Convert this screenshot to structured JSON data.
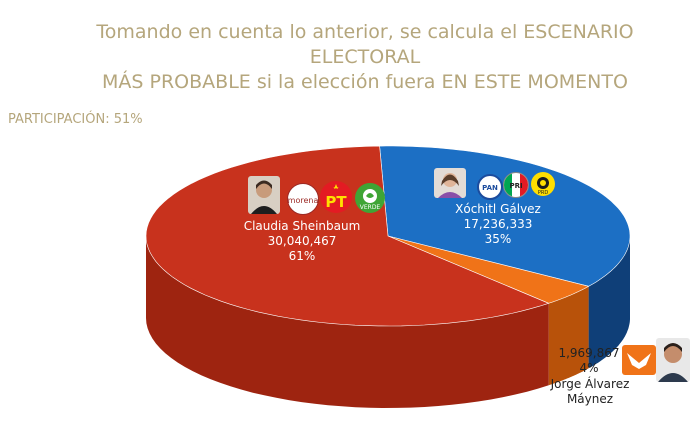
{
  "title_line1": "Tomando en cuenta lo anterior, se calcula el ESCENARIO ELECTORAL",
  "title_line2": "MÁS PROBABLE si la elección fuera EN ESTE MOMENTO",
  "participation": "PARTICIPACIÓN: 51%",
  "colors": {
    "title": "#b5a67c",
    "sheinbaum": "#c8321d",
    "galvez": "#1c6fc4",
    "maynez": "#f07318"
  },
  "chart_data": {
    "type": "pie",
    "title": "",
    "slices": [
      {
        "name": "Claudia Sheinbaum",
        "votes": "30,040,467",
        "value": 61,
        "pct_label": "61%",
        "color": "#c8321d",
        "dark": "#9e2410",
        "party_logos": [
          "morena-logo",
          "pt-logo",
          "verde-logo"
        ]
      },
      {
        "name": "Xóchitl Gálvez",
        "votes": "17,236,333",
        "value": 35,
        "pct_label": "35%",
        "color": "#1c6fc4",
        "dark": "#0f3f78",
        "party_logos": [
          "pan-logo",
          "pri-logo",
          "prd-logo"
        ]
      },
      {
        "name": "Jorge Álvarez Máynez",
        "name_line1": "Jorge Álvarez",
        "name_line2": "Máynez",
        "votes": "1,969,867",
        "value": 4,
        "pct_label": "4%",
        "color": "#f07318",
        "dark": "#b8520a",
        "party_logos": [
          "movimiento-ciudadano-logo"
        ]
      }
    ],
    "legend": "none"
  }
}
